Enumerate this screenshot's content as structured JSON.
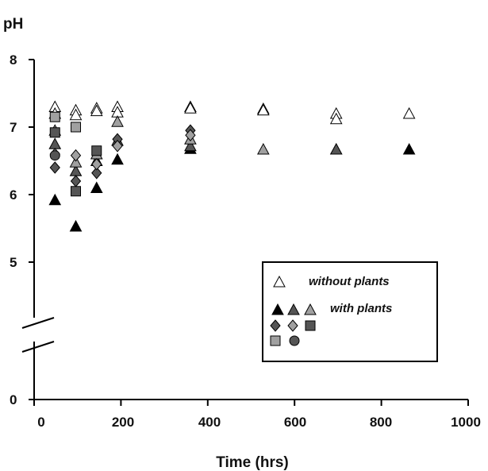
{
  "chart_data": {
    "type": "scatter",
    "xlabel": "Time (hrs)",
    "ylabel": "pH",
    "xlim": [
      0,
      1000
    ],
    "x_ticks": [
      "0",
      "200",
      "400",
      "600",
      "800",
      "1000"
    ],
    "y_ticks": [
      "0",
      "5",
      "6",
      "7",
      "8"
    ],
    "y_axis_break": true,
    "legend": {
      "placement": "lower-right",
      "entries": [
        {
          "label": "without plants",
          "series": [
            "without plants"
          ]
        },
        {
          "label": "with plants",
          "series": [
            "with plants 1",
            "with plants 2",
            "with plants 3",
            "with plants 4",
            "with plants 5",
            "with plants 6",
            "with plants 7",
            "with plants 8"
          ]
        }
      ]
    },
    "series": [
      {
        "name": "without plants",
        "marker": "triangle-open",
        "color": "#ffffff",
        "points": [
          [
            48,
            7.3
          ],
          [
            96,
            7.25
          ],
          [
            144,
            7.28
          ],
          [
            192,
            7.3
          ],
          [
            360,
            7.3
          ],
          [
            528,
            7.27
          ],
          [
            696,
            7.2
          ],
          [
            864,
            7.2
          ]
        ]
      },
      {
        "name": "without plants",
        "marker": "triangle-open",
        "color": "#ffffff",
        "points": [
          [
            48,
            7.2
          ],
          [
            96,
            7.18
          ],
          [
            144,
            7.24
          ],
          [
            192,
            7.22
          ],
          [
            360,
            7.28
          ],
          [
            528,
            7.25
          ],
          [
            696,
            7.12
          ]
        ]
      },
      {
        "name": "with plants 1",
        "marker": "triangle",
        "color": "#000000",
        "points": [
          [
            48,
            5.92
          ],
          [
            96,
            5.53
          ],
          [
            144,
            6.1
          ],
          [
            192,
            6.52
          ],
          [
            360,
            6.68
          ],
          [
            696,
            6.67
          ],
          [
            864,
            6.67
          ]
        ]
      },
      {
        "name": "with plants 2",
        "marker": "triangle",
        "color": "#555555",
        "points": [
          [
            48,
            6.75
          ],
          [
            96,
            6.35
          ],
          [
            144,
            6.5
          ],
          [
            192,
            6.8
          ],
          [
            360,
            6.72
          ],
          [
            696,
            6.67
          ]
        ]
      },
      {
        "name": "with plants 3",
        "marker": "triangle",
        "color": "#a0a0a0",
        "points": [
          [
            48,
            6.95
          ],
          [
            96,
            6.48
          ],
          [
            144,
            6.6
          ],
          [
            192,
            7.08
          ],
          [
            360,
            6.82
          ],
          [
            528,
            6.67
          ]
        ]
      },
      {
        "name": "with plants 4",
        "marker": "diamond",
        "color": "#555555",
        "points": [
          [
            48,
            6.4
          ],
          [
            96,
            6.2
          ],
          [
            144,
            6.32
          ],
          [
            192,
            6.82
          ],
          [
            360,
            6.95
          ]
        ]
      },
      {
        "name": "with plants 5",
        "marker": "diamond",
        "color": "#a0a0a0",
        "points": [
          [
            48,
            6.6
          ],
          [
            96,
            6.58
          ],
          [
            144,
            6.45
          ],
          [
            192,
            6.72
          ],
          [
            360,
            6.88
          ]
        ]
      },
      {
        "name": "with plants 6",
        "marker": "square",
        "color": "#555555",
        "points": [
          [
            48,
            6.92
          ],
          [
            96,
            6.05
          ],
          [
            144,
            6.65
          ]
        ]
      },
      {
        "name": "with plants 7",
        "marker": "square",
        "color": "#a0a0a0",
        "points": [
          [
            48,
            7.15
          ],
          [
            96,
            7.0
          ]
        ]
      },
      {
        "name": "with plants 8",
        "marker": "circle",
        "color": "#555555",
        "points": [
          [
            48,
            6.58
          ]
        ]
      }
    ]
  }
}
